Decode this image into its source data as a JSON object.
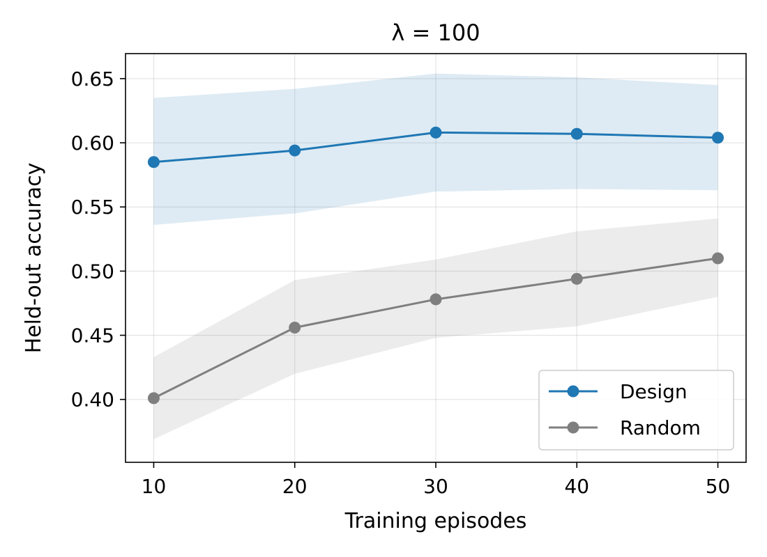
{
  "chart_data": {
    "type": "line",
    "title": "λ = 100",
    "xlabel": "Training episodes",
    "ylabel": "Held-out accuracy",
    "x": [
      10,
      20,
      30,
      40,
      50
    ],
    "xlim": [
      8,
      52
    ],
    "ylim": [
      0.351,
      0.6695
    ],
    "xticks": [
      10,
      20,
      30,
      40,
      50
    ],
    "xtick_labels": [
      "10",
      "20",
      "30",
      "40",
      "50"
    ],
    "yticks": [
      0.4,
      0.45,
      0.5,
      0.55,
      0.6,
      0.65
    ],
    "ytick_labels": [
      "0.40",
      "0.45",
      "0.50",
      "0.55",
      "0.60",
      "0.65"
    ],
    "grid": true,
    "legend_position": "lower-right",
    "series": [
      {
        "name": "Design",
        "color": "#1f77b4",
        "band_color": "#1f77b4",
        "values": [
          0.585,
          0.594,
          0.608,
          0.607,
          0.604
        ],
        "lower": [
          0.536,
          0.545,
          0.562,
          0.564,
          0.563
        ],
        "upper": [
          0.635,
          0.642,
          0.654,
          0.651,
          0.645
        ]
      },
      {
        "name": "Random",
        "color": "#7f7f7f",
        "band_color": "#7f7f7f",
        "values": [
          0.401,
          0.456,
          0.478,
          0.494,
          0.51
        ],
        "lower": [
          0.369,
          0.42,
          0.448,
          0.457,
          0.48
        ],
        "upper": [
          0.433,
          0.493,
          0.509,
          0.531,
          0.541
        ]
      }
    ]
  }
}
